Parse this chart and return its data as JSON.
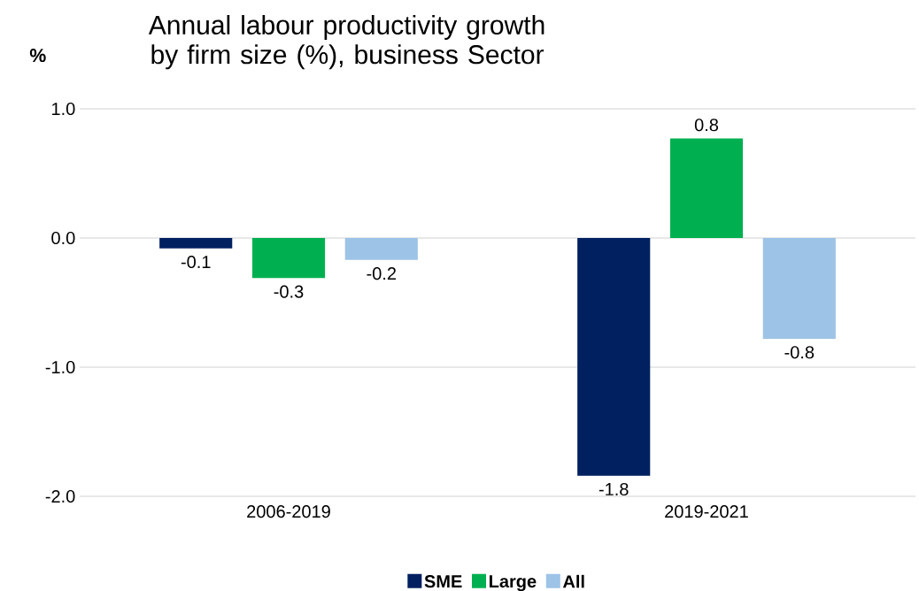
{
  "chart_data": {
    "type": "bar",
    "title": "Annual labour productivity growth by firm size (%), business Sector",
    "ylabel": "%",
    "categories": [
      "2006-2019",
      "2019-2021"
    ],
    "series": [
      {
        "name": "SME",
        "color": "#002060",
        "values": [
          -0.08,
          -1.84
        ],
        "value_labels": [
          "-0.1",
          "-1.8"
        ]
      },
      {
        "name": "Large",
        "color": "#00b050",
        "values": [
          -0.31,
          0.77
        ],
        "value_labels": [
          "-0.3",
          "0.8"
        ]
      },
      {
        "name": "All",
        "color": "#9dc3e6",
        "values": [
          -0.17,
          -0.78
        ],
        "value_labels": [
          "-0.2",
          "-0.8"
        ]
      }
    ],
    "ylim": [
      -2,
      1
    ],
    "yticks": [
      {
        "value": -2,
        "label": "-2.0"
      },
      {
        "value": -1,
        "label": "-1.0"
      },
      {
        "value": 0,
        "label": "0.0"
      },
      {
        "value": 1,
        "label": "1.0"
      }
    ],
    "grid": "y",
    "legend": "bottom"
  }
}
